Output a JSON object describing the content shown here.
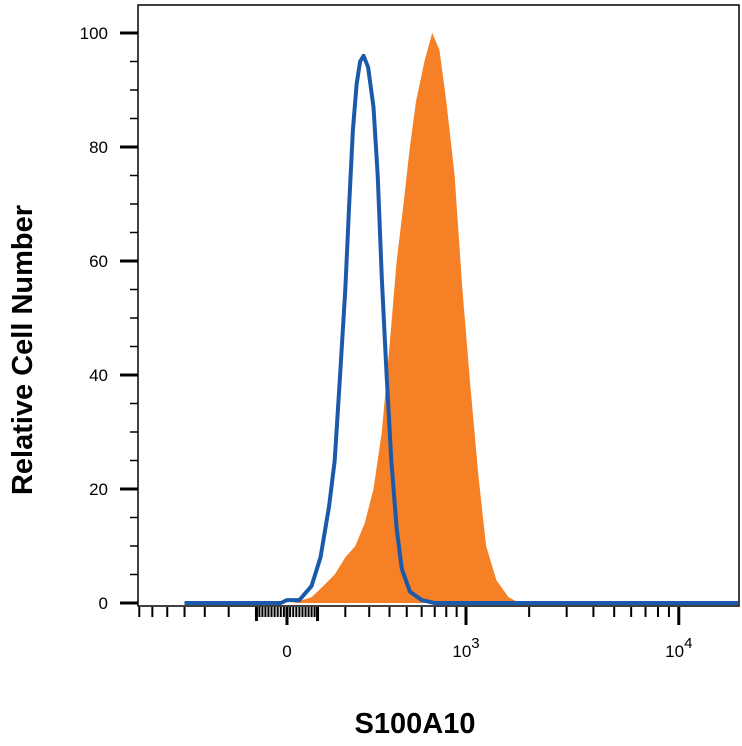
{
  "chart_data": {
    "type": "area",
    "title": "",
    "xlabel": "S100A10",
    "ylabel": "Relative Cell Number",
    "xscale": "biexponential",
    "ylim": [
      0,
      100
    ],
    "yticks": [
      0,
      20,
      40,
      60,
      80,
      100
    ],
    "xticks": [
      {
        "value": 0,
        "label": "0"
      },
      {
        "value": 1000,
        "base": "10",
        "exp": "3"
      },
      {
        "value": 10000,
        "base": "10",
        "exp": "4"
      }
    ],
    "grid": false,
    "legend": "none",
    "series": [
      {
        "style": "filled",
        "color": "#F58025",
        "points": [
          [
            -400,
            0
          ],
          [
            20,
            0
          ],
          [
            80,
            1
          ],
          [
            120,
            3
          ],
          [
            160,
            5
          ],
          [
            200,
            8
          ],
          [
            240,
            10
          ],
          [
            280,
            14
          ],
          [
            320,
            20
          ],
          [
            360,
            30
          ],
          [
            400,
            45
          ],
          [
            440,
            60
          ],
          [
            480,
            70
          ],
          [
            520,
            80
          ],
          [
            560,
            88
          ],
          [
            620,
            95
          ],
          [
            680,
            100
          ],
          [
            740,
            97
          ],
          [
            800,
            88
          ],
          [
            880,
            75
          ],
          [
            960,
            55
          ],
          [
            1050,
            38
          ],
          [
            1150,
            22
          ],
          [
            1250,
            10
          ],
          [
            1400,
            4
          ],
          [
            1600,
            1
          ],
          [
            1800,
            0
          ],
          [
            40000,
            0
          ]
        ]
      },
      {
        "style": "line",
        "color": "#1B5AAA",
        "points": [
          [
            -400,
            0
          ],
          [
            -20,
            0
          ],
          [
            0,
            0.5
          ],
          [
            40,
            0.5
          ],
          [
            80,
            3
          ],
          [
            110,
            8
          ],
          [
            140,
            17
          ],
          [
            160,
            25
          ],
          [
            180,
            40
          ],
          [
            200,
            55
          ],
          [
            215,
            70
          ],
          [
            230,
            83
          ],
          [
            245,
            91
          ],
          [
            260,
            95
          ],
          [
            275,
            96
          ],
          [
            295,
            94
          ],
          [
            320,
            87
          ],
          [
            340,
            75
          ],
          [
            360,
            57
          ],
          [
            385,
            40
          ],
          [
            410,
            25
          ],
          [
            440,
            13
          ],
          [
            470,
            6
          ],
          [
            520,
            2
          ],
          [
            600,
            0.5
          ],
          [
            700,
            0
          ],
          [
            40000,
            0
          ]
        ]
      }
    ]
  }
}
